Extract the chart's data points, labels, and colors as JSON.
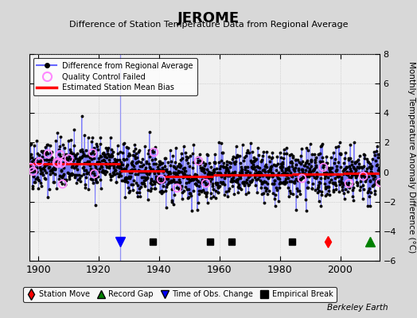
{
  "title": "JEROME",
  "subtitle": "Difference of Station Temperature Data from Regional Average",
  "ylabel": "Monthly Temperature Anomaly Difference (°C)",
  "xlabel_years": [
    1900,
    1920,
    1940,
    1960,
    1980,
    2000
  ],
  "ylim": [
    -6,
    8
  ],
  "yticks": [
    -6,
    -4,
    -2,
    0,
    2,
    4,
    6,
    8
  ],
  "xlim": [
    1897,
    2013
  ],
  "line_color": "#6666ff",
  "marker_color": "#000000",
  "bias_color": "#ff0000",
  "qc_color": "#ff88ff",
  "credit": "Berkeley Earth",
  "segments": [
    {
      "start": 1897,
      "end": 1927,
      "bias": 0.55
    },
    {
      "start": 1927,
      "end": 1942,
      "bias": 0.1
    },
    {
      "start": 1942,
      "end": 1958,
      "bias": -0.3
    },
    {
      "start": 1958,
      "end": 1984,
      "bias": -0.2
    },
    {
      "start": 1984,
      "end": 2001,
      "bias": -0.15
    },
    {
      "start": 2001,
      "end": 2013,
      "bias": -0.1
    }
  ],
  "station_moves": [
    1996
  ],
  "record_gaps": [
    2010
  ],
  "time_of_obs_changes": [
    1927
  ],
  "empirical_breaks": [
    1938,
    1957,
    1964,
    1984
  ],
  "seed": 42
}
